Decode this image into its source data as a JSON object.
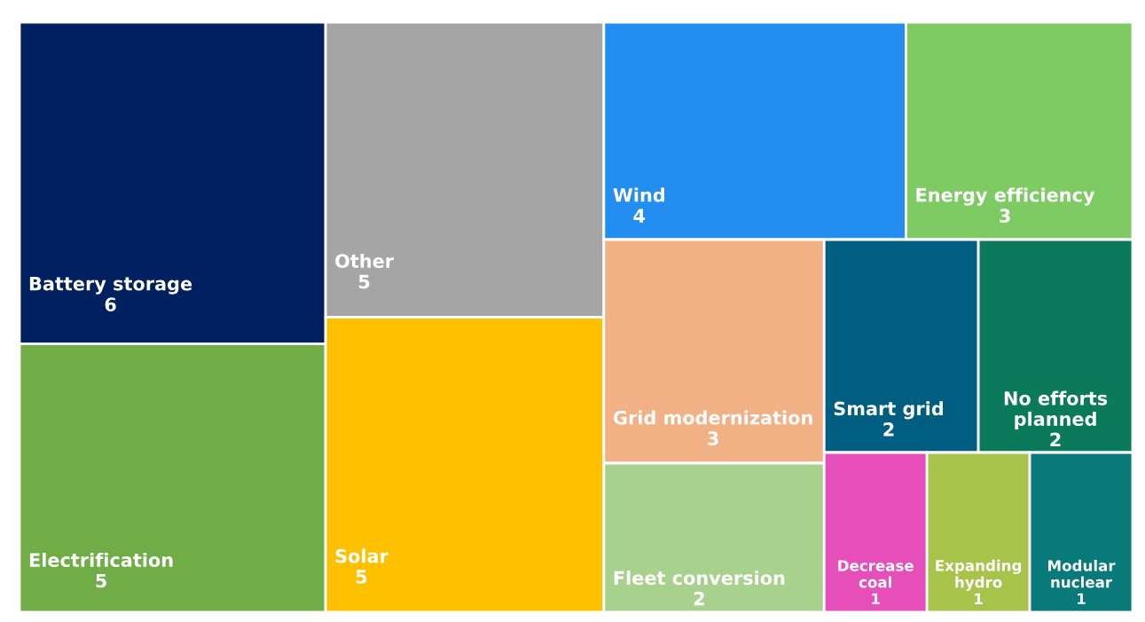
{
  "chart_data": {
    "type": "other",
    "categories": [
      "Battery storage",
      "Electrification",
      "Other",
      "Solar",
      "Wind",
      "Energy efficiency",
      "Grid modernization",
      "Fleet conversion",
      "Smart grid",
      "No efforts planned",
      "Decrease coal",
      "Expanding hydro",
      "Modular nuclear"
    ],
    "values": [
      6,
      5,
      5,
      5,
      4,
      3,
      3,
      2,
      2,
      2,
      1,
      1,
      1
    ],
    "colors": [
      "#002060",
      "#70ad47",
      "#a5a5a5",
      "#ffc000",
      "#248ef0",
      "#7ecb63",
      "#f2b085",
      "#a9d18e",
      "#005e80",
      "#0b7a5a",
      "#e64fb9",
      "#a8c34a",
      "#0a797a"
    ],
    "data_labels": true
  }
}
